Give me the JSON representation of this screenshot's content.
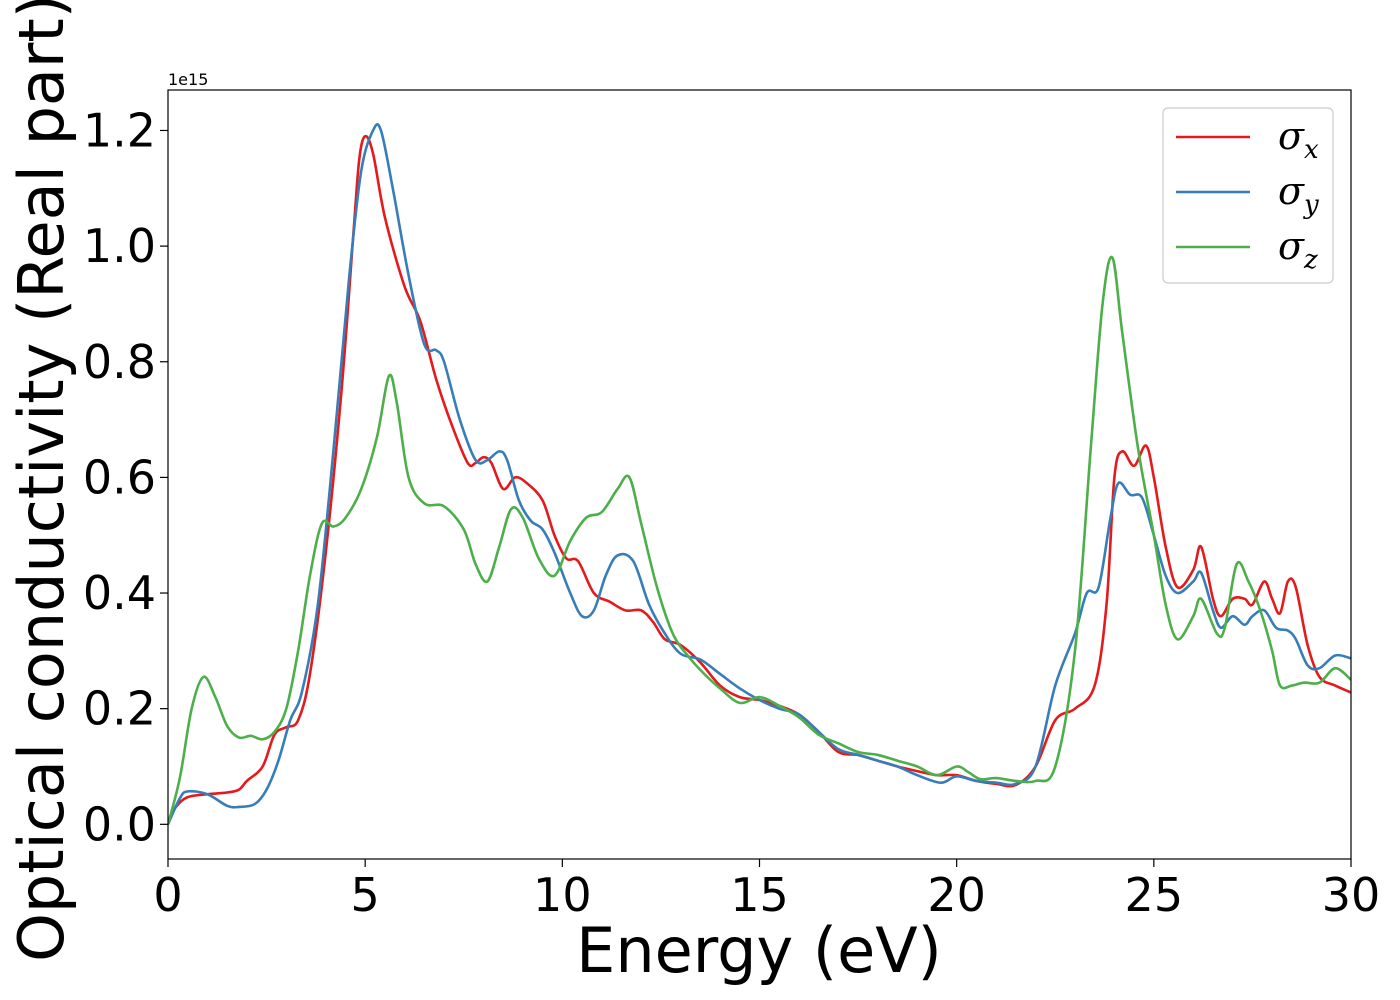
{
  "chart_data": {
    "type": "line",
    "title": "",
    "xlabel": "Energy (eV)",
    "ylabel": "Optical conductivity (Real part)",
    "y_offset_label": "1e15",
    "xlim": [
      0,
      30
    ],
    "ylim": [
      -0.06,
      1.27
    ],
    "x_ticks": [
      0,
      5,
      10,
      15,
      20,
      25,
      30
    ],
    "x_tick_labels": [
      "0",
      "5",
      "10",
      "15",
      "20",
      "25",
      "30"
    ],
    "y_ticks": [
      0.0,
      0.2,
      0.4,
      0.6,
      0.8,
      1.0,
      1.2
    ],
    "y_tick_labels": [
      "0.0",
      "0.2",
      "0.4",
      "0.6",
      "0.8",
      "1.0",
      "1.2"
    ],
    "grid": false,
    "legend_position": "top-right",
    "series": [
      {
        "name": "σx",
        "name_base": "σ",
        "name_sub": "x",
        "color": "#e41a1c",
        "points": [
          [
            0,
            0.0
          ],
          [
            0.2,
            0.03
          ],
          [
            0.5,
            0.047
          ],
          [
            1.0,
            0.052
          ],
          [
            1.5,
            0.055
          ],
          [
            1.8,
            0.06
          ],
          [
            2.0,
            0.075
          ],
          [
            2.4,
            0.1
          ],
          [
            2.7,
            0.155
          ],
          [
            3.0,
            0.168
          ],
          [
            3.3,
            0.18
          ],
          [
            3.6,
            0.26
          ],
          [
            4.0,
            0.47
          ],
          [
            4.4,
            0.75
          ],
          [
            4.7,
            1.02
          ],
          [
            4.85,
            1.15
          ],
          [
            5.0,
            1.19
          ],
          [
            5.2,
            1.16
          ],
          [
            5.5,
            1.05
          ],
          [
            6.0,
            0.93
          ],
          [
            6.4,
            0.87
          ],
          [
            6.8,
            0.77
          ],
          [
            7.2,
            0.69
          ],
          [
            7.6,
            0.625
          ],
          [
            7.8,
            0.625
          ],
          [
            8.0,
            0.635
          ],
          [
            8.2,
            0.625
          ],
          [
            8.5,
            0.58
          ],
          [
            8.8,
            0.6
          ],
          [
            9.1,
            0.59
          ],
          [
            9.5,
            0.56
          ],
          [
            9.8,
            0.5
          ],
          [
            10.1,
            0.46
          ],
          [
            10.4,
            0.455
          ],
          [
            10.8,
            0.4
          ],
          [
            11.2,
            0.385
          ],
          [
            11.6,
            0.37
          ],
          [
            12.0,
            0.37
          ],
          [
            12.3,
            0.35
          ],
          [
            12.6,
            0.32
          ],
          [
            13.0,
            0.31
          ],
          [
            13.5,
            0.28
          ],
          [
            14.0,
            0.24
          ],
          [
            14.5,
            0.22
          ],
          [
            15.0,
            0.215
          ],
          [
            15.5,
            0.205
          ],
          [
            16.0,
            0.19
          ],
          [
            16.5,
            0.16
          ],
          [
            17.0,
            0.125
          ],
          [
            17.5,
            0.12
          ],
          [
            18.0,
            0.11
          ],
          [
            18.5,
            0.1
          ],
          [
            19.0,
            0.092
          ],
          [
            19.5,
            0.085
          ],
          [
            20.0,
            0.085
          ],
          [
            20.5,
            0.075
          ],
          [
            21.0,
            0.07
          ],
          [
            21.5,
            0.068
          ],
          [
            22.0,
            0.1
          ],
          [
            22.5,
            0.18
          ],
          [
            23.0,
            0.2
          ],
          [
            23.5,
            0.24
          ],
          [
            23.8,
            0.38
          ],
          [
            24.0,
            0.6
          ],
          [
            24.2,
            0.645
          ],
          [
            24.5,
            0.62
          ],
          [
            24.8,
            0.655
          ],
          [
            25.0,
            0.6
          ],
          [
            25.3,
            0.48
          ],
          [
            25.6,
            0.41
          ],
          [
            26.0,
            0.44
          ],
          [
            26.2,
            0.48
          ],
          [
            26.5,
            0.39
          ],
          [
            26.7,
            0.36
          ],
          [
            27.0,
            0.39
          ],
          [
            27.3,
            0.39
          ],
          [
            27.5,
            0.38
          ],
          [
            27.8,
            0.42
          ],
          [
            28.0,
            0.39
          ],
          [
            28.2,
            0.365
          ],
          [
            28.4,
            0.42
          ],
          [
            28.6,
            0.41
          ],
          [
            28.9,
            0.31
          ],
          [
            29.2,
            0.255
          ],
          [
            29.6,
            0.24
          ],
          [
            30.0,
            0.228
          ]
        ]
      },
      {
        "name": "σy",
        "name_base": "σ",
        "name_sub": "y",
        "color": "#377eb8",
        "points": [
          [
            0,
            0.0
          ],
          [
            0.3,
            0.045
          ],
          [
            0.5,
            0.057
          ],
          [
            1.0,
            0.052
          ],
          [
            1.5,
            0.032
          ],
          [
            1.8,
            0.03
          ],
          [
            2.2,
            0.035
          ],
          [
            2.5,
            0.06
          ],
          [
            2.8,
            0.11
          ],
          [
            3.1,
            0.18
          ],
          [
            3.4,
            0.23
          ],
          [
            3.8,
            0.38
          ],
          [
            4.2,
            0.65
          ],
          [
            4.6,
            0.95
          ],
          [
            4.9,
            1.13
          ],
          [
            5.2,
            1.2
          ],
          [
            5.4,
            1.2
          ],
          [
            5.7,
            1.1
          ],
          [
            6.1,
            0.95
          ],
          [
            6.5,
            0.83
          ],
          [
            6.8,
            0.82
          ],
          [
            7.0,
            0.8
          ],
          [
            7.4,
            0.7
          ],
          [
            7.8,
            0.63
          ],
          [
            8.1,
            0.63
          ],
          [
            8.4,
            0.645
          ],
          [
            8.6,
            0.63
          ],
          [
            8.9,
            0.56
          ],
          [
            9.2,
            0.525
          ],
          [
            9.5,
            0.51
          ],
          [
            9.8,
            0.47
          ],
          [
            10.2,
            0.4
          ],
          [
            10.5,
            0.36
          ],
          [
            10.8,
            0.37
          ],
          [
            11.1,
            0.43
          ],
          [
            11.4,
            0.465
          ],
          [
            11.8,
            0.455
          ],
          [
            12.2,
            0.38
          ],
          [
            12.6,
            0.33
          ],
          [
            13.0,
            0.295
          ],
          [
            13.5,
            0.285
          ],
          [
            14.0,
            0.26
          ],
          [
            14.5,
            0.235
          ],
          [
            15.0,
            0.215
          ],
          [
            15.5,
            0.2
          ],
          [
            16.0,
            0.19
          ],
          [
            16.5,
            0.16
          ],
          [
            17.0,
            0.13
          ],
          [
            17.5,
            0.12
          ],
          [
            18.0,
            0.11
          ],
          [
            18.5,
            0.1
          ],
          [
            19.0,
            0.085
          ],
          [
            19.6,
            0.072
          ],
          [
            20.0,
            0.083
          ],
          [
            20.5,
            0.075
          ],
          [
            21.0,
            0.072
          ],
          [
            21.5,
            0.07
          ],
          [
            22.0,
            0.1
          ],
          [
            22.5,
            0.24
          ],
          [
            23.0,
            0.33
          ],
          [
            23.3,
            0.4
          ],
          [
            23.6,
            0.41
          ],
          [
            23.9,
            0.53
          ],
          [
            24.1,
            0.59
          ],
          [
            24.4,
            0.57
          ],
          [
            24.7,
            0.565
          ],
          [
            25.0,
            0.5
          ],
          [
            25.3,
            0.43
          ],
          [
            25.6,
            0.4
          ],
          [
            26.0,
            0.42
          ],
          [
            26.2,
            0.435
          ],
          [
            26.5,
            0.37
          ],
          [
            26.7,
            0.34
          ],
          [
            27.0,
            0.36
          ],
          [
            27.3,
            0.345
          ],
          [
            27.5,
            0.36
          ],
          [
            27.8,
            0.37
          ],
          [
            28.1,
            0.34
          ],
          [
            28.4,
            0.335
          ],
          [
            28.6,
            0.32
          ],
          [
            28.9,
            0.275
          ],
          [
            29.2,
            0.27
          ],
          [
            29.6,
            0.292
          ],
          [
            30.0,
            0.287
          ]
        ]
      },
      {
        "name": "σz",
        "name_base": "σ",
        "name_sub": "z",
        "color": "#4daf4a",
        "points": [
          [
            0,
            0.0
          ],
          [
            0.3,
            0.08
          ],
          [
            0.6,
            0.2
          ],
          [
            0.9,
            0.255
          ],
          [
            1.2,
            0.22
          ],
          [
            1.5,
            0.17
          ],
          [
            1.8,
            0.15
          ],
          [
            2.1,
            0.153
          ],
          [
            2.4,
            0.147
          ],
          [
            2.7,
            0.16
          ],
          [
            3.0,
            0.2
          ],
          [
            3.3,
            0.3
          ],
          [
            3.6,
            0.43
          ],
          [
            3.9,
            0.52
          ],
          [
            4.2,
            0.515
          ],
          [
            4.5,
            0.53
          ],
          [
            4.9,
            0.58
          ],
          [
            5.3,
            0.67
          ],
          [
            5.6,
            0.775
          ],
          [
            5.8,
            0.73
          ],
          [
            6.1,
            0.6
          ],
          [
            6.5,
            0.555
          ],
          [
            7.0,
            0.55
          ],
          [
            7.5,
            0.51
          ],
          [
            7.8,
            0.45
          ],
          [
            8.1,
            0.42
          ],
          [
            8.4,
            0.48
          ],
          [
            8.7,
            0.545
          ],
          [
            9.0,
            0.53
          ],
          [
            9.4,
            0.46
          ],
          [
            9.8,
            0.43
          ],
          [
            10.2,
            0.49
          ],
          [
            10.6,
            0.53
          ],
          [
            11.0,
            0.54
          ],
          [
            11.4,
            0.58
          ],
          [
            11.7,
            0.6
          ],
          [
            12.0,
            0.52
          ],
          [
            12.4,
            0.41
          ],
          [
            12.8,
            0.33
          ],
          [
            13.2,
            0.29
          ],
          [
            13.6,
            0.26
          ],
          [
            14.0,
            0.235
          ],
          [
            14.5,
            0.21
          ],
          [
            15.0,
            0.22
          ],
          [
            15.5,
            0.205
          ],
          [
            16.0,
            0.185
          ],
          [
            16.5,
            0.155
          ],
          [
            17.0,
            0.14
          ],
          [
            17.5,
            0.125
          ],
          [
            18.0,
            0.12
          ],
          [
            18.5,
            0.11
          ],
          [
            19.0,
            0.1
          ],
          [
            19.5,
            0.085
          ],
          [
            20.0,
            0.1
          ],
          [
            20.3,
            0.09
          ],
          [
            20.6,
            0.078
          ],
          [
            21.0,
            0.08
          ],
          [
            21.5,
            0.075
          ],
          [
            22.0,
            0.075
          ],
          [
            22.5,
            0.1
          ],
          [
            23.0,
            0.3
          ],
          [
            23.4,
            0.65
          ],
          [
            23.7,
            0.9
          ],
          [
            23.95,
            0.98
          ],
          [
            24.2,
            0.85
          ],
          [
            24.6,
            0.65
          ],
          [
            25.0,
            0.5
          ],
          [
            25.3,
            0.38
          ],
          [
            25.6,
            0.32
          ],
          [
            26.0,
            0.36
          ],
          [
            26.2,
            0.39
          ],
          [
            26.6,
            0.33
          ],
          [
            26.8,
            0.34
          ],
          [
            27.1,
            0.45
          ],
          [
            27.4,
            0.42
          ],
          [
            27.7,
            0.37
          ],
          [
            28.0,
            0.3
          ],
          [
            28.2,
            0.24
          ],
          [
            28.5,
            0.24
          ],
          [
            28.8,
            0.245
          ],
          [
            29.2,
            0.245
          ],
          [
            29.6,
            0.27
          ],
          [
            30.0,
            0.25
          ]
        ]
      }
    ]
  }
}
